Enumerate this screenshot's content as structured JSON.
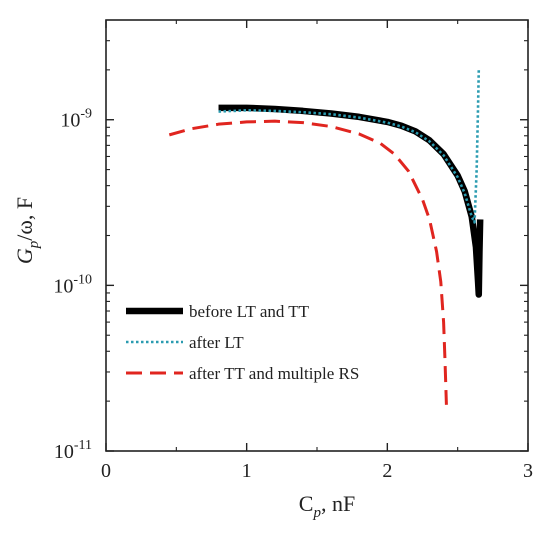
{
  "chart_data": {
    "type": "line",
    "title": "",
    "xlabel": {
      "main": "C",
      "sub": "p",
      "suffix": ", nF"
    },
    "ylabel": {
      "main": "G",
      "sub": "p",
      "suffix": "/ω, F"
    },
    "x_scale": "linear",
    "y_scale": "log",
    "xlim": [
      0,
      3
    ],
    "ylim": [
      1e-11,
      4e-09
    ],
    "x_ticks": [
      {
        "value": 0,
        "label": "0"
      },
      {
        "value": 1,
        "label": "1"
      },
      {
        "value": 2,
        "label": "2"
      },
      {
        "value": 3,
        "label": "3"
      }
    ],
    "y_ticks": [
      {
        "value": 1e-11,
        "base": "10",
        "exp": "-11"
      },
      {
        "value": 1e-10,
        "base": "10",
        "exp": "-10"
      },
      {
        "value": 1e-09,
        "base": "10",
        "exp": "-9"
      }
    ],
    "grid": false,
    "legend_position": "lower-left",
    "series": [
      {
        "name": "before LT and TT",
        "color": "#000000",
        "style": "solid-thick",
        "points": [
          [
            0.8,
            1.18e-09
          ],
          [
            1.0,
            1.18e-09
          ],
          [
            1.2,
            1.16e-09
          ],
          [
            1.4,
            1.13e-09
          ],
          [
            1.6,
            1.09e-09
          ],
          [
            1.8,
            1.04e-09
          ],
          [
            2.0,
            9.7e-10
          ],
          [
            2.1,
            9.2e-10
          ],
          [
            2.2,
            8.5e-10
          ],
          [
            2.3,
            7.5e-10
          ],
          [
            2.4,
            6.2e-10
          ],
          [
            2.5,
            4.6e-10
          ],
          [
            2.55,
            3.7e-10
          ],
          [
            2.6,
            2.6e-10
          ],
          [
            2.63,
            1.7e-10
          ],
          [
            2.645,
            1.05e-10
          ],
          [
            2.65,
            8.8e-11
          ],
          [
            2.655,
            1.6e-10
          ],
          [
            2.66,
            2.5e-10
          ]
        ]
      },
      {
        "name": "after LT",
        "color": "#2a9bb0",
        "style": "dotted",
        "points": [
          [
            0.8,
            1.12e-09
          ],
          [
            1.0,
            1.14e-09
          ],
          [
            1.2,
            1.13e-09
          ],
          [
            1.4,
            1.11e-09
          ],
          [
            1.6,
            1.08e-09
          ],
          [
            1.8,
            1.03e-09
          ],
          [
            2.0,
            9.6e-10
          ],
          [
            2.1,
            9.1e-10
          ],
          [
            2.2,
            8.4e-10
          ],
          [
            2.3,
            7.4e-10
          ],
          [
            2.4,
            6.1e-10
          ],
          [
            2.5,
            4.5e-10
          ],
          [
            2.55,
            3.6e-10
          ],
          [
            2.6,
            2.6e-10
          ],
          [
            2.62,
            2.4e-10
          ],
          [
            2.635,
            5e-10
          ],
          [
            2.645,
            1.2e-09
          ],
          [
            2.65,
            2e-09
          ]
        ]
      },
      {
        "name": "after TT and multiple RS",
        "color": "#e0251f",
        "style": "dashed",
        "points": [
          [
            0.45,
            8.1e-10
          ],
          [
            0.6,
            8.8e-10
          ],
          [
            0.8,
            9.4e-10
          ],
          [
            1.0,
            9.7e-10
          ],
          [
            1.2,
            9.8e-10
          ],
          [
            1.4,
            9.6e-10
          ],
          [
            1.6,
            9.1e-10
          ],
          [
            1.8,
            8.2e-10
          ],
          [
            1.95,
            7.2e-10
          ],
          [
            2.05,
            6.2e-10
          ],
          [
            2.15,
            4.9e-10
          ],
          [
            2.25,
            3.3e-10
          ],
          [
            2.3,
            2.5e-10
          ],
          [
            2.35,
            1.6e-10
          ],
          [
            2.38,
            1.05e-10
          ],
          [
            2.4,
            6e-11
          ],
          [
            2.41,
            3.5e-11
          ],
          [
            2.42,
            1.9e-11
          ]
        ]
      }
    ]
  }
}
